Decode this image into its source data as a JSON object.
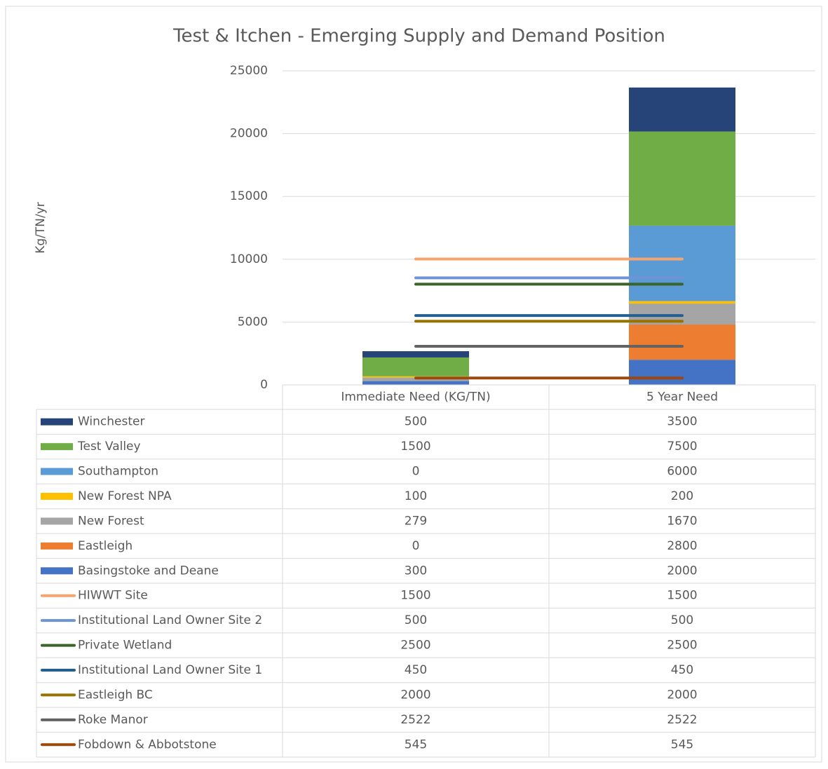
{
  "chart_data": {
    "type": "bar",
    "stacked": true,
    "title": "Test & Itchen  - Emerging Supply and Demand Position",
    "ylabel": "Kg/TN/yr",
    "categories": [
      "Immediate Need (KG/TN)",
      "5 Year Need"
    ],
    "ylim": [
      0,
      25000
    ],
    "yticks": [
      0,
      5000,
      10000,
      15000,
      20000,
      25000
    ],
    "grid": true,
    "data_table": true,
    "series": [
      {
        "name": "Winchester",
        "type": "bar",
        "color": "#264478",
        "values": [
          500,
          3500
        ]
      },
      {
        "name": "Test Valley",
        "type": "bar",
        "color": "#70ad47",
        "values": [
          1500,
          7500
        ]
      },
      {
        "name": "Southampton",
        "type": "bar",
        "color": "#5b9bd5",
        "values": [
          0,
          6000
        ]
      },
      {
        "name": "New Forest NPA",
        "type": "bar",
        "color": "#ffc000",
        "values": [
          100,
          200
        ]
      },
      {
        "name": "New Forest",
        "type": "bar",
        "color": "#a5a5a5",
        "values": [
          279,
          1670
        ]
      },
      {
        "name": "Eastleigh",
        "type": "bar",
        "color": "#ed7d31",
        "values": [
          0,
          2800
        ]
      },
      {
        "name": "Basingstoke and Deane",
        "type": "bar",
        "color": "#4472c4",
        "values": [
          300,
          2000
        ]
      },
      {
        "name": "HIWWT Site",
        "type": "line",
        "color": "#f4a46e",
        "values": [
          1500,
          1500
        ]
      },
      {
        "name": "Institutional Land Owner  Site 2",
        "type": "line",
        "color": "#6f94d6",
        "values": [
          500,
          500
        ]
      },
      {
        "name": "Private Wetland",
        "type": "line",
        "color": "#3a6428",
        "values": [
          2500,
          2500
        ]
      },
      {
        "name": "Institutional Land Owner Site 1",
        "type": "line",
        "color": "#255e91",
        "values": [
          450,
          450
        ]
      },
      {
        "name": "Eastleigh BC",
        "type": "line",
        "color": "#997300",
        "values": [
          2000,
          2000
        ]
      },
      {
        "name": "Roke Manor",
        "type": "line",
        "color": "#636363",
        "values": [
          2522,
          2522
        ]
      },
      {
        "name": "Fobdown & Abbotstone",
        "type": "line",
        "color": "#9e480e",
        "values": [
          545,
          545
        ]
      }
    ]
  }
}
